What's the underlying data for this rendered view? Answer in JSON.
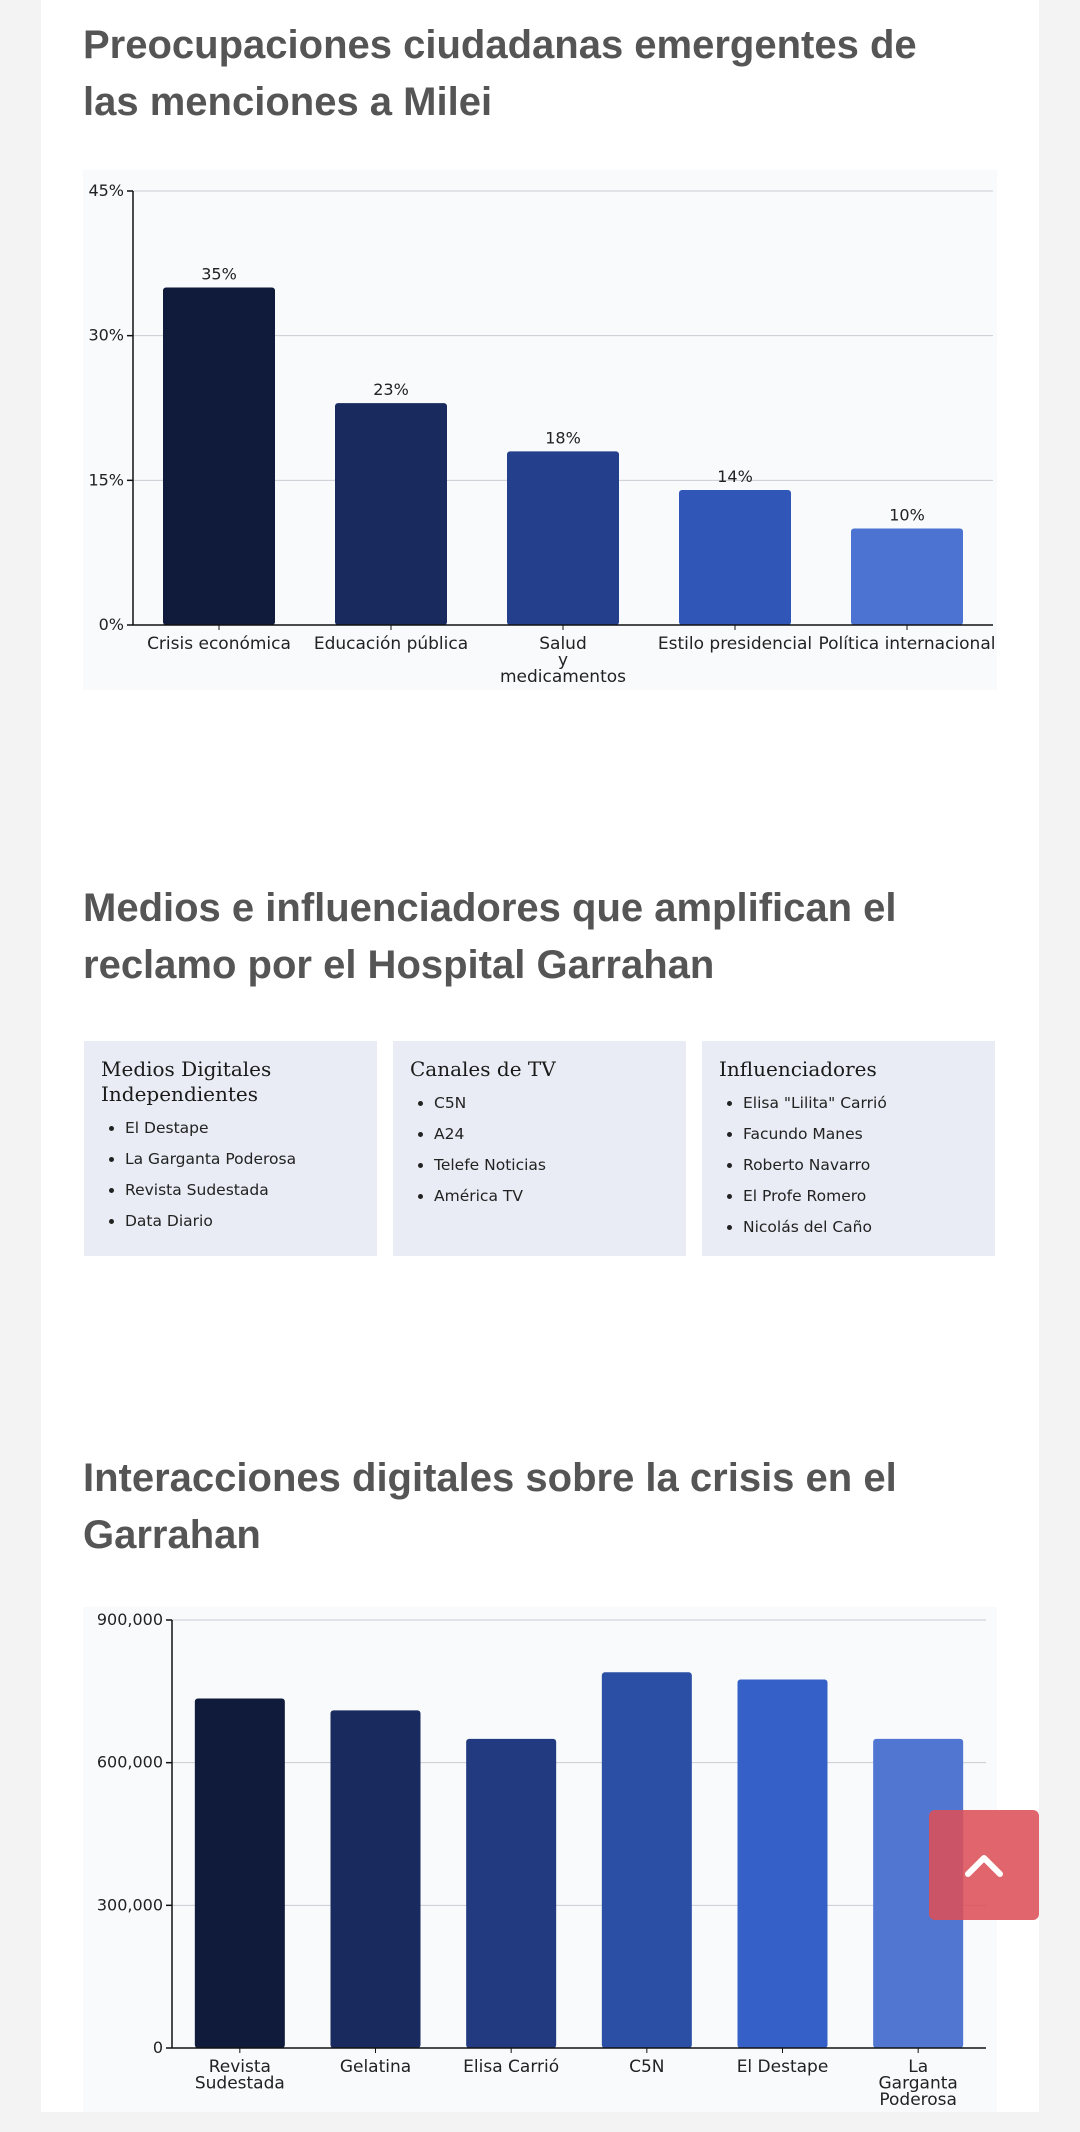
{
  "sections": [
    {
      "title": "Preocupaciones ciudadanas emergentes de las menciones a Milei"
    },
    {
      "title": "Medios e influenciadores que amplifican el reclamo por el Hospital Garrahan"
    },
    {
      "title": "Interacciones digitales sobre la crisis en el Garrahan"
    }
  ],
  "cards": [
    {
      "title": "Medios Digitales Independientes",
      "items": [
        "El Destape",
        "La Garganta Poderosa",
        "Revista Sudestada",
        "Data Diario"
      ]
    },
    {
      "title": "Canales de TV",
      "items": [
        "C5N",
        "A24",
        "Telefe Noticias",
        "América TV"
      ]
    },
    {
      "title": "Influenciadores",
      "items": [
        "Elisa \"Lilita\" Carrió",
        "Facundo Manes",
        "Roberto Navarro",
        "El Profe Romero",
        "Nicolás del Caño"
      ]
    }
  ],
  "scroll_top": {
    "icon": "chevron-up-icon",
    "color": "#dc5058"
  },
  "chart_data": [
    {
      "type": "bar",
      "title": "",
      "xlabel": "",
      "ylabel": "",
      "categories": [
        [
          "Crisis económica"
        ],
        [
          "Educación pública"
        ],
        [
          "Salud",
          "y",
          "medicamentos"
        ],
        [
          "Estilo presidencial"
        ],
        [
          "Política internacional"
        ]
      ],
      "values": [
        35,
        23,
        18,
        14,
        10
      ],
      "value_labels": [
        "35%",
        "23%",
        "18%",
        "14%",
        "10%"
      ],
      "ylim": [
        0,
        45
      ],
      "yticks": [
        0,
        15,
        30,
        45
      ],
      "ytick_labels": [
        "0%",
        "15%",
        "30%",
        "45%"
      ],
      "colors": [
        "#101b3b",
        "#192a5e",
        "#243f8b",
        "#3056b8",
        "#4c73d1"
      ],
      "grid": true,
      "legend": "none"
    },
    {
      "type": "bar",
      "title": "",
      "xlabel": "",
      "ylabel": "",
      "categories": [
        [
          "Revista",
          "Sudestada"
        ],
        [
          "Gelatina"
        ],
        [
          "Elisa Carrió"
        ],
        [
          "C5N"
        ],
        [
          "El Destape"
        ],
        [
          "La",
          "Garganta",
          "Poderosa"
        ]
      ],
      "values": [
        735000,
        710000,
        650000,
        790000,
        775000,
        650000
      ],
      "ylim": [
        0,
        900000
      ],
      "yticks": [
        0,
        300000,
        600000,
        900000
      ],
      "ytick_labels": [
        "0",
        "300,000",
        "600,000",
        "900,000"
      ],
      "colors": [
        "#101b3b",
        "#192a5e",
        "#213a80",
        "#2b4fa4",
        "#3460c8",
        "#5076d2"
      ],
      "grid": true,
      "legend": "none"
    }
  ]
}
